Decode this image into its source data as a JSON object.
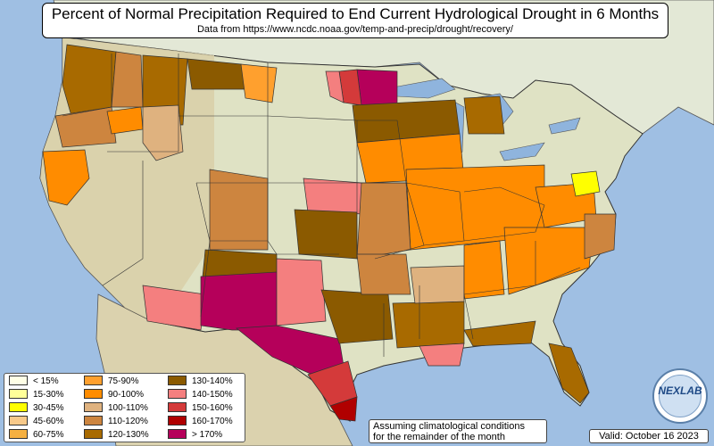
{
  "title": "Percent of Normal Precipitation Required to End Current Hydrological Drought in 6 Months",
  "subtitle": "Data from https://www.ncdc.noaa.gov/temp-and-precip/drought/recovery/",
  "note": {
    "line1": "Assuming climatological conditions",
    "line2": "for the remainder of the month"
  },
  "valid": "Valid: October 16 2023",
  "logo_text": "NEXLAB",
  "colors": {
    "ocean": "#9fbfe3",
    "land": "#dfe2c4",
    "land_west": "#d9cfa8",
    "canada": "#e3e8d6",
    "mexico": "#dbd2ae",
    "lake": "#8fb4dd",
    "border": "#333333"
  },
  "legend": [
    {
      "label": "< 15%",
      "color": "#ffffe6"
    },
    {
      "label": "15-30%",
      "color": "#ffff99"
    },
    {
      "label": "30-45%",
      "color": "#ffff00"
    },
    {
      "label": "45-60%",
      "color": "#f7c98a"
    },
    {
      "label": "60-75%",
      "color": "#f5b041"
    },
    {
      "label": "75-90%",
      "color": "#ffa02e"
    },
    {
      "label": "90-100%",
      "color": "#ff8c00"
    },
    {
      "label": "100-110%",
      "color": "#dfb27f"
    },
    {
      "label": "110-120%",
      "color": "#cd853f"
    },
    {
      "label": "120-130%",
      "color": "#a86a00"
    },
    {
      "label": "130-140%",
      "color": "#8b5a00"
    },
    {
      "label": "140-150%",
      "color": "#f47f7f"
    },
    {
      "label": "150-160%",
      "color": "#d43a3a"
    },
    {
      "label": "160-170%",
      "color": "#b00000"
    },
    {
      "label": "> 170%",
      "color": "#b5005a"
    }
  ],
  "regions": [
    {
      "name": "washington-coast",
      "category": "120-130%"
    },
    {
      "name": "washington-east",
      "category": "110-120%"
    },
    {
      "name": "oregon-west",
      "category": "110-120%"
    },
    {
      "name": "california-coast",
      "category": "90-100%"
    },
    {
      "name": "idaho-central",
      "category": "90-100%"
    },
    {
      "name": "montana-northwest",
      "category": "120-130%"
    },
    {
      "name": "montana-north",
      "category": "130-140%"
    },
    {
      "name": "montana-northeast",
      "category": "75-90%"
    },
    {
      "name": "wyoming-west",
      "category": "100-110%"
    },
    {
      "name": "minnesota-northeast",
      "category": "> 170%"
    },
    {
      "name": "minnesota-central",
      "category": "150-160%"
    },
    {
      "name": "minnesota-west",
      "category": "140-150%"
    },
    {
      "name": "wisconsin-iowa-midwest",
      "category": "130-140%"
    },
    {
      "name": "iowa-illinois",
      "category": "90-100%"
    },
    {
      "name": "missouri-indiana-ohio",
      "category": "90-100%"
    },
    {
      "name": "kansas-nebraska",
      "category": "140-150%"
    },
    {
      "name": "kansas-east",
      "category": "110-120%"
    },
    {
      "name": "colorado-east",
      "category": "110-120%"
    },
    {
      "name": "new-mexico-north",
      "category": "130-140%"
    },
    {
      "name": "arizona-southeast",
      "category": "140-150%"
    },
    {
      "name": "new-mexico-south",
      "category": "> 170%"
    },
    {
      "name": "texas-panhandle",
      "category": "140-150%"
    },
    {
      "name": "texas-central",
      "category": "> 170%"
    },
    {
      "name": "texas-east",
      "category": "130-140%"
    },
    {
      "name": "texas-gulf",
      "category": "150-160%"
    },
    {
      "name": "texas-south-tip",
      "category": "160-170%"
    },
    {
      "name": "oklahoma",
      "category": "130-140%"
    },
    {
      "name": "arkansas",
      "category": "110-120%"
    },
    {
      "name": "louisiana",
      "category": "120-130%"
    },
    {
      "name": "louisiana-coast",
      "category": "140-150%"
    },
    {
      "name": "mississippi-alabama",
      "category": "100-110%"
    },
    {
      "name": "gulf-coast-east",
      "category": "120-130%"
    },
    {
      "name": "tennessee-kentucky",
      "category": "90-100%"
    },
    {
      "name": "georgia-carolinas",
      "category": "90-100%"
    },
    {
      "name": "virginia-west",
      "category": "90-100%"
    },
    {
      "name": "north-carolina-east",
      "category": "110-120%"
    },
    {
      "name": "florida",
      "category": "120-130%"
    },
    {
      "name": "michigan-upper",
      "category": "120-130%"
    },
    {
      "name": "maryland-delaware",
      "category": "30-45%"
    }
  ]
}
